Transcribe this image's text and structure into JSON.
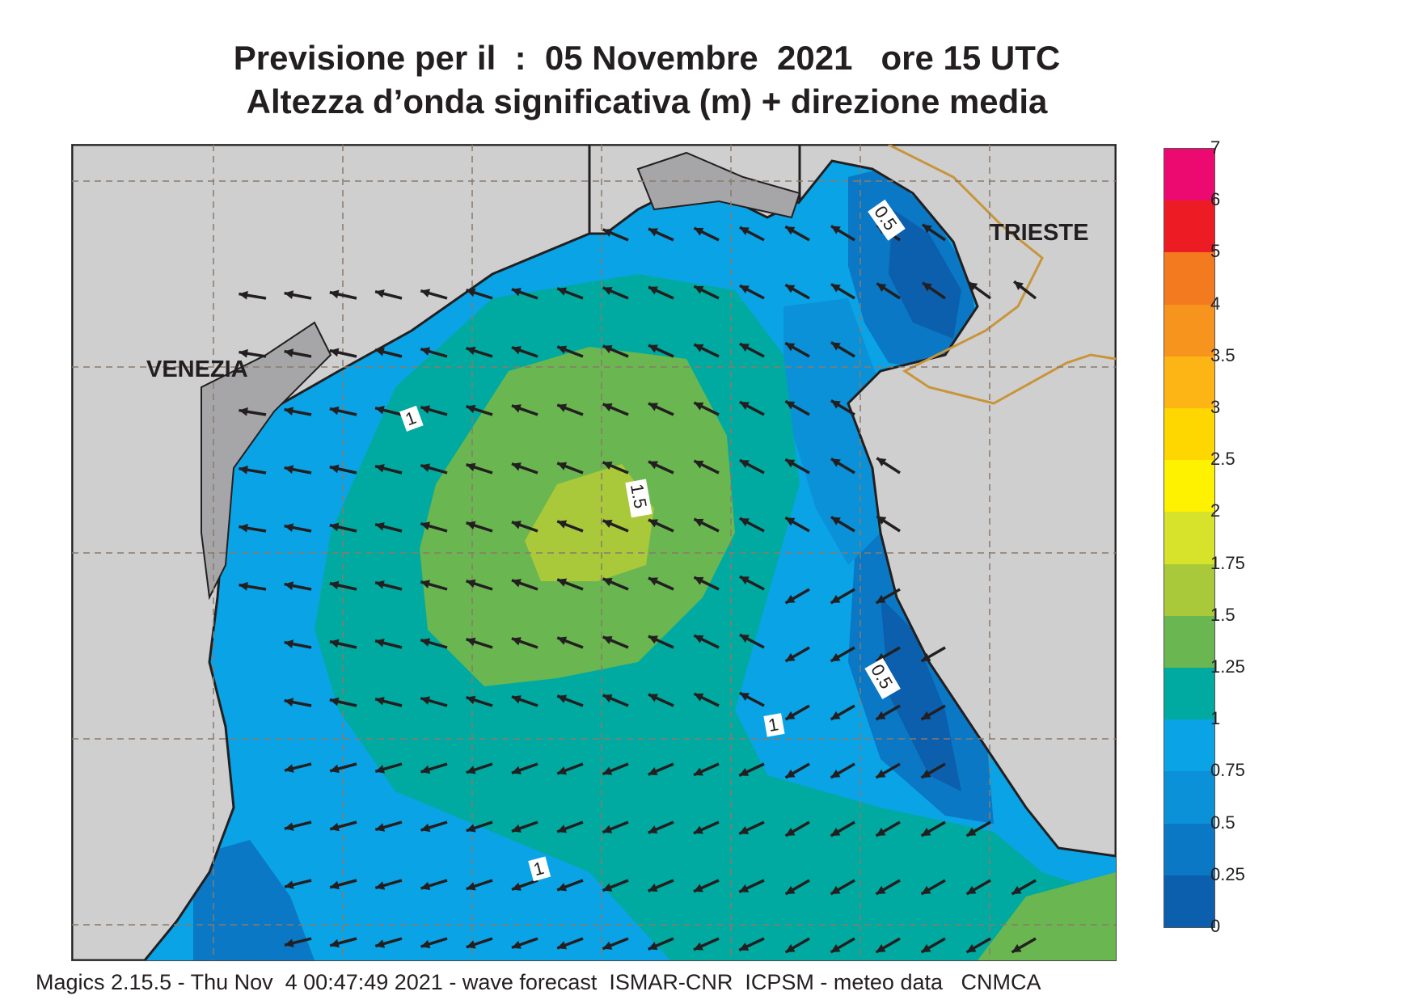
{
  "title": {
    "line1": "Previsione per il  :  05 Novembre  2021   ore 15 UTC",
    "line2": "Altezza d’onda significativa (m) + direzione media"
  },
  "cities": {
    "venezia": "VENEZIA",
    "trieste": "TRIESTE"
  },
  "contour_labels": [
    "0.5",
    "1",
    "1.5",
    "1",
    "0.5",
    "1",
    "1"
  ],
  "legend": {
    "ticks": [
      "0",
      "0.25",
      "0.5",
      "0.75",
      "1",
      "1.25",
      "1.5",
      "1.75",
      "2",
      "2.5",
      "3",
      "3.5",
      "4",
      "5",
      "6",
      "7"
    ],
    "colors": [
      "#0b5fad",
      "#0a78c4",
      "#0b91d8",
      "#0aa3e6",
      "#00aaa0",
      "#6ab651",
      "#a9c83a",
      "#d7e32a",
      "#fff200",
      "#ffd700",
      "#fdb515",
      "#f7941d",
      "#f47a20",
      "#ed1c24",
      "#ec0a70"
    ]
  },
  "colors": {
    "land": "#cfcfd0",
    "coast": "#231f20",
    "border": "#c8953b",
    "arrow": "#231f20"
  },
  "footer": "Magics 2.15.5 - Thu Nov  4 00:47:49 2021 - wave forecast  ISMAR-CNR  ICPSM - meteo data   CNMCA"
}
